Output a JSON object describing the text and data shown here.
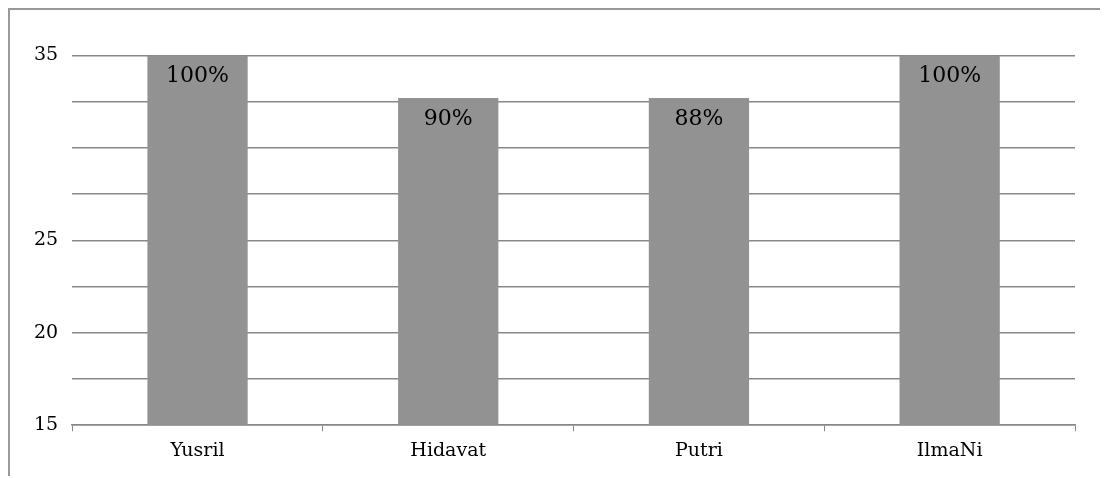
{
  "chart_data": {
    "type": "bar",
    "categories": [
      "Yusril",
      "Hidavat",
      "Putri",
      "IlmaNi"
    ],
    "values": [
      35,
      32.7,
      32.7,
      35
    ],
    "color": "#929292",
    "annotations": [
      {
        "text": "100%",
        "x": "Yusril",
        "y": 35
      },
      {
        "text": "90%",
        "x": "Hidavat",
        "y": 32.7
      },
      {
        "text": "88%",
        "x": "Putri",
        "y": 32.7
      },
      {
        "text": "100%",
        "x": "IlmaNi",
        "y": 35
      }
    ],
    "ylim": [
      15,
      35
    ],
    "yticks": [
      15,
      {
        "value": 17.5,
        "label": null
      },
      20,
      {
        "value": 22.5,
        "label": null
      },
      25,
      {
        "value": 27.5,
        "label": null
      },
      {
        "value": 30,
        "label": null
      },
      {
        "value": 32.5,
        "label": null
      },
      35
    ],
    "grid": "y",
    "legend": false
  }
}
